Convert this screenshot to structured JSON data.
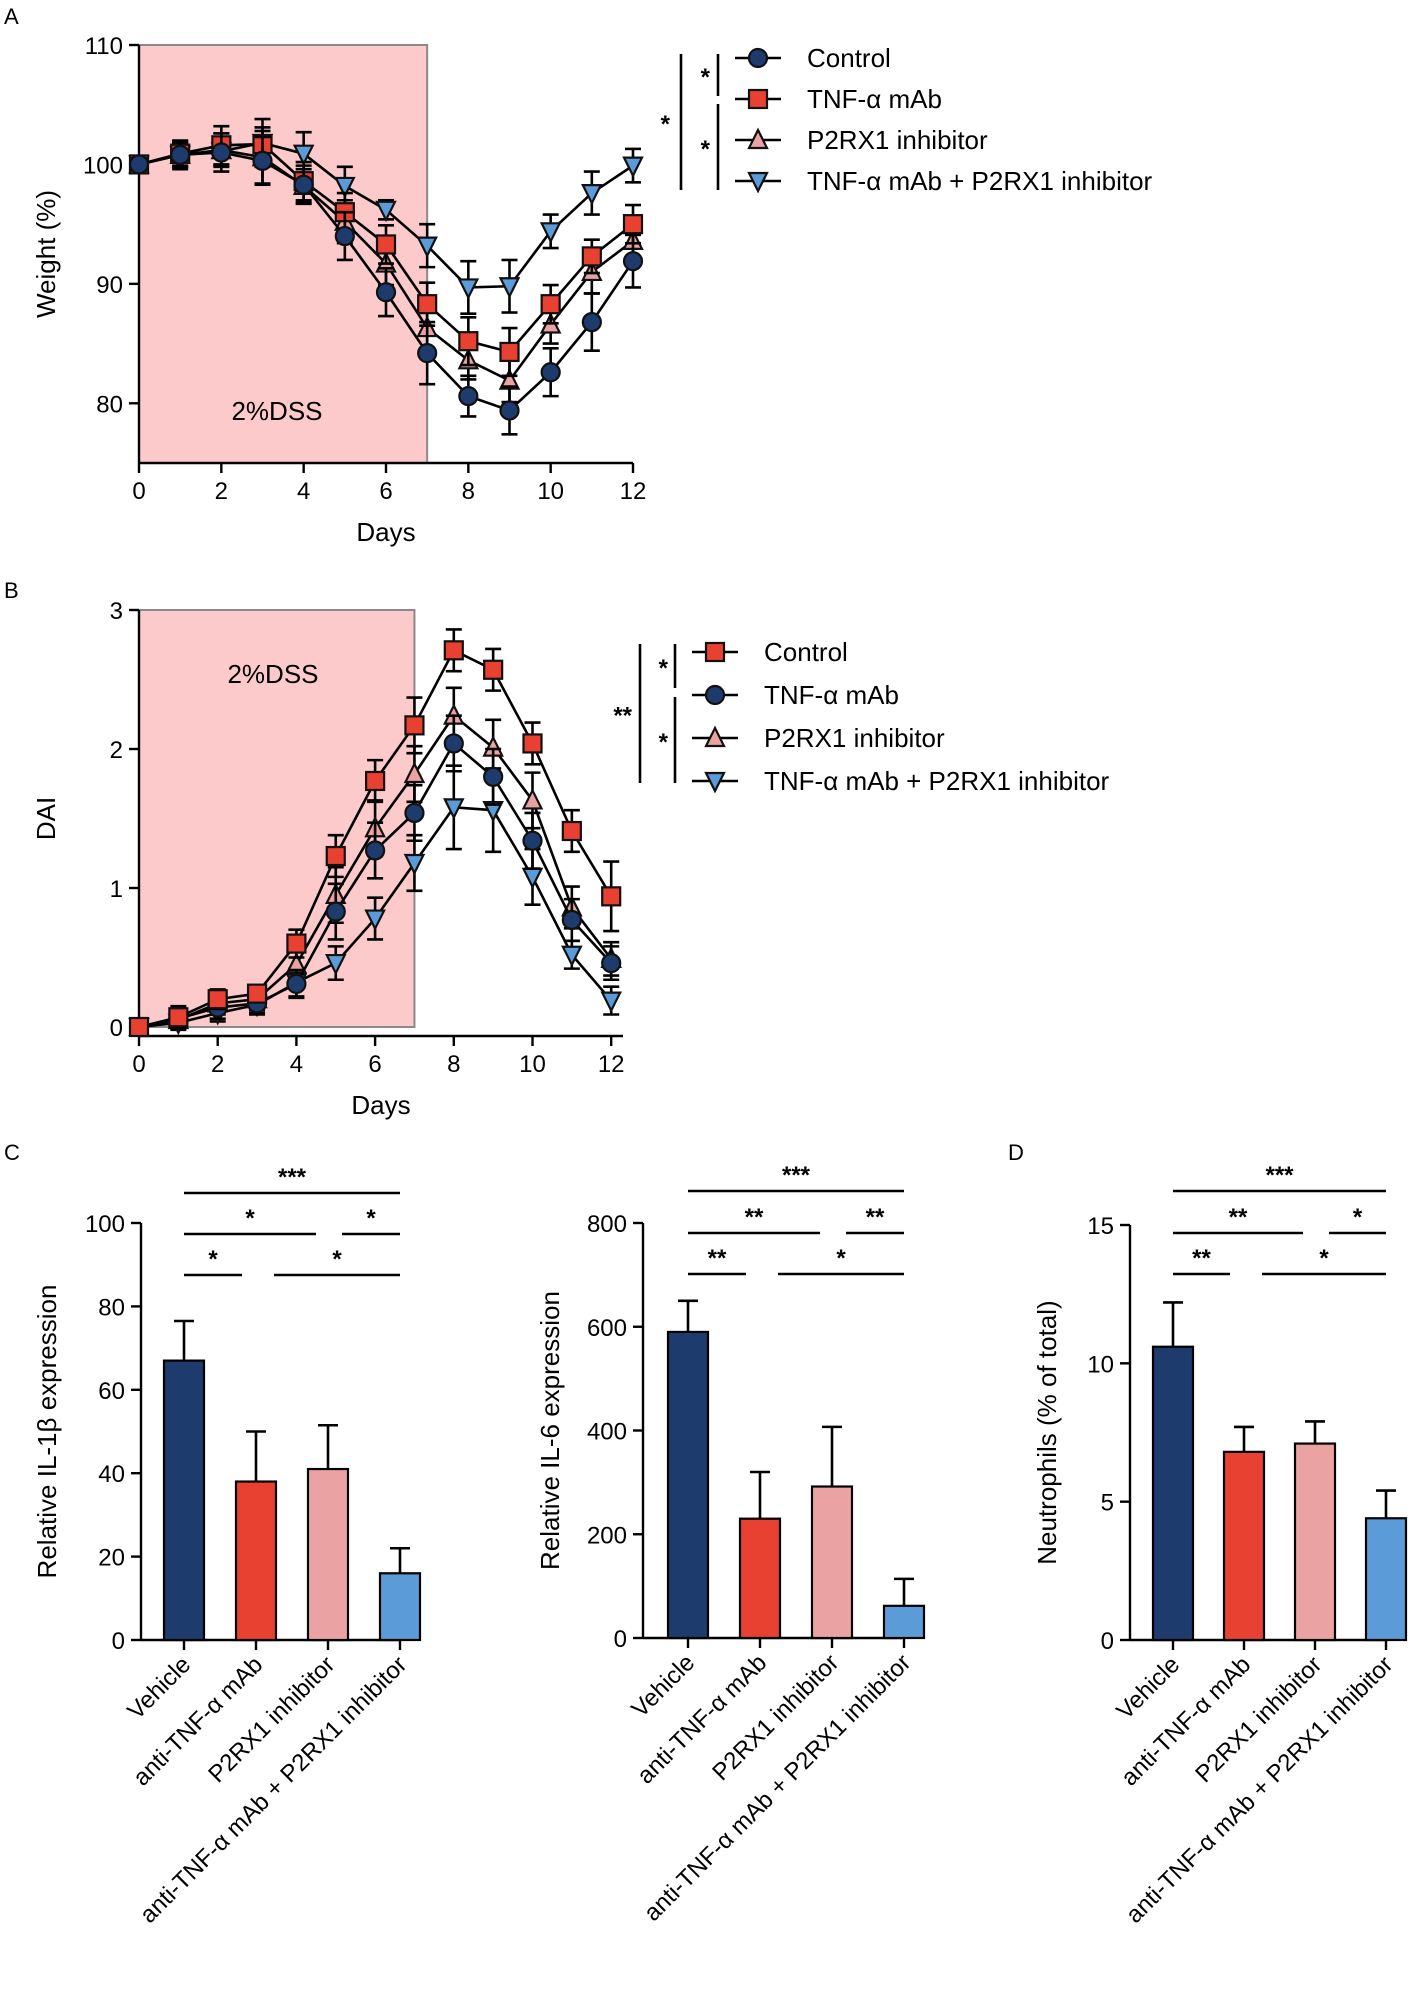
{
  "panel_letters": [
    "A",
    "B",
    "C",
    "D"
  ],
  "colors": {
    "control": "#1e3b6e",
    "tnf": "#e84031",
    "p2rx1": "#eba2a2",
    "combo": "#5b9bd8",
    "dss_shade": "#fccaca"
  },
  "chart_data": [
    {
      "id": "A",
      "type": "line",
      "xlabel": "Days",
      "ylabel": "Weight (%)",
      "xlim": [
        0,
        12
      ],
      "ylim": [
        75,
        110
      ],
      "xticks": [
        0,
        2,
        4,
        6,
        8,
        10,
        12
      ],
      "yticks": [
        80,
        90,
        100,
        110
      ],
      "shaded_region": {
        "x": [
          0,
          7
        ],
        "label": "2%DSS"
      },
      "x": [
        0,
        1,
        2,
        3,
        4,
        5,
        6,
        7,
        8,
        9,
        10,
        11,
        12
      ],
      "series": [
        {
          "name": "Control",
          "marker": "circle",
          "color": "#1e3b6e",
          "values": [
            100,
            100.8,
            101,
            100.3,
            98.3,
            94,
            89.3,
            84.2,
            80.6,
            79.4,
            82.6,
            86.8,
            91.9
          ],
          "errors": [
            0.5,
            1.2,
            1.6,
            2.0,
            1.6,
            2.0,
            2.0,
            2.6,
            1.7,
            2.0,
            2.0,
            2.4,
            2.2
          ]
        },
        {
          "name": "TNF-α mAb",
          "marker": "square",
          "color": "#e84031",
          "values": [
            100,
            100.9,
            101.6,
            101.7,
            98.6,
            96,
            93.3,
            88.3,
            85.2,
            84.3,
            88.3,
            92.3,
            95
          ],
          "errors": [
            0.5,
            1.0,
            1.6,
            1.4,
            1.6,
            1.6,
            1.6,
            1.8,
            2.0,
            2.0,
            1.6,
            1.4,
            1.6
          ]
        },
        {
          "name": "P2RX1 inhibitor",
          "marker": "triangle-up",
          "color": "#eba2a2",
          "values": [
            100,
            100.8,
            101.2,
            100.6,
            98.2,
            95.2,
            91.7,
            86.3,
            83.6,
            81.9,
            86.6,
            91,
            93.6
          ],
          "errors": [
            0.5,
            1.0,
            1.4,
            2.2,
            1.4,
            1.8,
            1.8,
            2.0,
            1.6,
            1.8,
            1.6,
            1.8,
            1.8
          ]
        },
        {
          "name": "TNF-α mAb + P2RX1 inhibitor",
          "marker": "triangle-down",
          "color": "#5b9bd8",
          "values": [
            100,
            100.8,
            101.1,
            101.8,
            100.9,
            98.2,
            96.2,
            93.2,
            89.7,
            89.8,
            94.4,
            97.6,
            99.9
          ],
          "errors": [
            0.5,
            1.0,
            1.2,
            2.0,
            1.8,
            1.6,
            0.8,
            1.8,
            2.2,
            2.2,
            1.4,
            1.8,
            1.4
          ]
        }
      ],
      "significance": [
        {
          "label": "*",
          "between": [
            "Control",
            "TNF-α mAb"
          ]
        },
        {
          "label": "*",
          "between": [
            "TNF-α mAb",
            "TNF-α mAb + P2RX1 inhibitor"
          ]
        },
        {
          "label": "*",
          "between": [
            "Control",
            "TNF-α mAb + P2RX1 inhibitor"
          ]
        }
      ]
    },
    {
      "id": "B",
      "type": "line",
      "xlabel": "Days",
      "ylabel": "DAI",
      "xlim": [
        0,
        12.3
      ],
      "ylim": [
        0,
        3
      ],
      "xticks": [
        0,
        2,
        4,
        6,
        8,
        10,
        12
      ],
      "yticks": [
        0,
        1,
        2,
        3
      ],
      "shaded_region": {
        "x": [
          0,
          7
        ],
        "label": "2%DSS"
      },
      "x": [
        0,
        1,
        2,
        3,
        4,
        5,
        6,
        7,
        8,
        9,
        10,
        11,
        12
      ],
      "series": [
        {
          "name": "Control",
          "marker": "square",
          "color": "#e84031",
          "values": [
            0,
            0.07,
            0.2,
            0.24,
            0.6,
            1.23,
            1.77,
            2.17,
            2.71,
            2.57,
            2.04,
            1.41,
            0.94
          ],
          "errors": [
            0.03,
            0.08,
            0.07,
            0.06,
            0.1,
            0.15,
            0.15,
            0.2,
            0.15,
            0.15,
            0.15,
            0.15,
            0.25
          ]
        },
        {
          "name": "TNF-α mAb",
          "marker": "circle",
          "color": "#1e3b6e",
          "values": [
            0,
            0.06,
            0.14,
            0.17,
            0.31,
            0.83,
            1.27,
            1.54,
            2.04,
            1.8,
            1.34,
            0.77,
            0.46
          ],
          "errors": [
            0.03,
            0.06,
            0.08,
            0.08,
            0.1,
            0.2,
            0.2,
            0.2,
            0.2,
            0.2,
            0.2,
            0.15,
            0.12
          ]
        },
        {
          "name": "P2RX1 inhibitor",
          "marker": "triangle-up",
          "color": "#eba2a2",
          "values": [
            0,
            0.05,
            0.17,
            0.2,
            0.45,
            0.95,
            1.43,
            1.82,
            2.24,
            2.01,
            1.63,
            0.86,
            0.49
          ],
          "errors": [
            0.03,
            0.06,
            0.08,
            0.08,
            0.12,
            0.2,
            0.2,
            0.2,
            0.2,
            0.2,
            0.2,
            0.15,
            0.12
          ]
        },
        {
          "name": "TNF-α mAb + P2RX1 inhibitor",
          "marker": "triangle-down",
          "color": "#5b9bd8",
          "values": [
            0,
            0.03,
            0.1,
            0.16,
            0.32,
            0.46,
            0.78,
            1.18,
            1.58,
            1.56,
            1.08,
            0.52,
            0.19
          ],
          "errors": [
            0.03,
            0.05,
            0.06,
            0.06,
            0.1,
            0.12,
            0.15,
            0.2,
            0.3,
            0.3,
            0.2,
            0.1,
            0.1
          ]
        }
      ],
      "significance": [
        {
          "label": "*",
          "between": [
            "Control",
            "TNF-α mAb"
          ]
        },
        {
          "label": "*",
          "between": [
            "TNF-α mAb",
            "TNF-α mAb + P2RX1 inhibitor"
          ]
        },
        {
          "label": "**",
          "between": [
            "Control",
            "TNF-α mAb + P2RX1 inhibitor"
          ]
        }
      ]
    },
    {
      "id": "C1",
      "type": "bar",
      "ylabel": "Relative IL-1β expression",
      "categories": [
        "Vehicle",
        "anti-TNF-α mAb",
        "P2RX1 inhibitor",
        "anti-TNF-α mAb + P2RX1 inhibitor"
      ],
      "values": [
        67,
        38,
        41,
        16
      ],
      "errors": [
        9.5,
        12,
        10.5,
        6
      ],
      "bar_colors": [
        "#1e3b6e",
        "#e84031",
        "#eba2a2",
        "#5b9bd8"
      ],
      "ylim": [
        0,
        100
      ],
      "yticks": [
        0,
        20,
        40,
        60,
        80,
        100
      ],
      "significance": [
        {
          "label": "***",
          "from": 0,
          "to": 3,
          "level": 0
        },
        {
          "label": "*",
          "from": 0,
          "to": 2,
          "level": 1
        },
        {
          "label": "*",
          "from": 2,
          "to": 3,
          "level": 1
        },
        {
          "label": "*",
          "from": 0,
          "to": 1,
          "level": 2
        },
        {
          "label": "*",
          "from": 1,
          "to": 3,
          "level": 2
        }
      ]
    },
    {
      "id": "C2",
      "type": "bar",
      "ylabel": "Relative IL-6 expression",
      "categories": [
        "Vehicle",
        "anti-TNF-α mAb",
        "P2RX1 inhibitor",
        "anti-TNF-α mAb + P2RX1 inhibitor"
      ],
      "values": [
        590,
        230,
        292,
        62
      ],
      "errors": [
        60,
        90,
        115,
        52
      ],
      "bar_colors": [
        "#1e3b6e",
        "#e84031",
        "#eba2a2",
        "#5b9bd8"
      ],
      "ylim": [
        0,
        800
      ],
      "yticks": [
        0,
        200,
        400,
        600,
        800
      ],
      "significance": [
        {
          "label": "***",
          "from": 0,
          "to": 3,
          "level": 0
        },
        {
          "label": "**",
          "from": 0,
          "to": 2,
          "level": 1
        },
        {
          "label": "**",
          "from": 2,
          "to": 3,
          "level": 1
        },
        {
          "label": "**",
          "from": 0,
          "to": 1,
          "level": 2
        },
        {
          "label": "*",
          "from": 1,
          "to": 3,
          "level": 2
        }
      ]
    },
    {
      "id": "D",
      "type": "bar",
      "ylabel": "Neutrophils (% of total)",
      "categories": [
        "Vehicle",
        "anti-TNF-α mAb",
        "P2RX1 inhibitor",
        "anti-TNF-α mAb + P2RX1 inhibitor"
      ],
      "values": [
        10.6,
        6.8,
        7.1,
        4.4
      ],
      "errors": [
        1.6,
        0.9,
        0.8,
        1.0
      ],
      "bar_colors": [
        "#1e3b6e",
        "#e84031",
        "#eba2a2",
        "#5b9bd8"
      ],
      "ylim": [
        0,
        15
      ],
      "yticks": [
        0,
        5,
        10,
        15
      ],
      "significance": [
        {
          "label": "***",
          "from": 0,
          "to": 3,
          "level": 0
        },
        {
          "label": "**",
          "from": 0,
          "to": 2,
          "level": 1
        },
        {
          "label": "*",
          "from": 2,
          "to": 3,
          "level": 1
        },
        {
          "label": "**",
          "from": 0,
          "to": 1,
          "level": 2
        },
        {
          "label": "*",
          "from": 1,
          "to": 3,
          "level": 2
        }
      ]
    }
  ]
}
